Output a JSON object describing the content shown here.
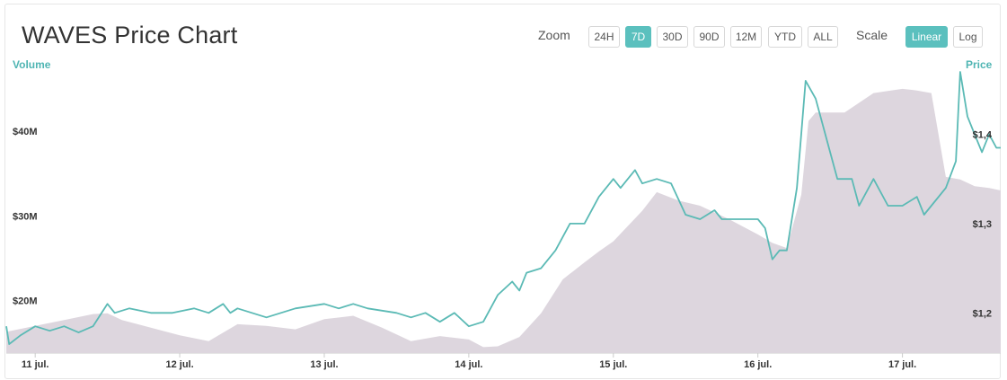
{
  "title": "WAVES Price Chart",
  "zoom": {
    "label": "Zoom",
    "buttons": [
      "24H",
      "7D",
      "30D",
      "90D",
      "12M",
      "YTD",
      "ALL"
    ],
    "active": "7D"
  },
  "scale": {
    "label": "Scale",
    "buttons": [
      "Linear",
      "Log"
    ],
    "active": "Linear"
  },
  "colors": {
    "accent": "#5bc0be",
    "price_line": "#5bbab5",
    "volume_fill": "#ddd6de"
  },
  "chart_data": {
    "type": "line",
    "left_axis_label": "Volume",
    "right_axis_label": "Price",
    "x_tick_labels": [
      "11 jul.",
      "12 jul.",
      "13 jul.",
      "14 jul.",
      "15 jul.",
      "16 jul.",
      "17 jul."
    ],
    "x_range": [
      10.8,
      17.68
    ],
    "volume_ticks": [
      "$20M",
      "$30M",
      "$40M"
    ],
    "volume_tick_values": [
      20,
      30,
      40
    ],
    "volume_range": [
      13.8,
      47
    ],
    "price_ticks": [
      "$1,2",
      "$1,3",
      "$1,4"
    ],
    "price_tick_values": [
      1.2,
      1.3,
      1.4
    ],
    "price_range": [
      1.155,
      1.47
    ],
    "volume": {
      "name": "Volume",
      "unit": "$M",
      "x": [
        10.8,
        11.0,
        11.2,
        11.4,
        11.5,
        11.6,
        11.8,
        12.0,
        12.2,
        12.4,
        12.6,
        12.8,
        13.0,
        13.2,
        13.4,
        13.6,
        13.8,
        14.0,
        14.1,
        14.2,
        14.35,
        14.5,
        14.65,
        14.8,
        14.9,
        15.0,
        15.1,
        15.2,
        15.3,
        15.45,
        15.6,
        15.8,
        16.0,
        16.1,
        16.2,
        16.3,
        16.35,
        16.4,
        16.6,
        16.8,
        17.0,
        17.1,
        17.2,
        17.3,
        17.4,
        17.5,
        17.6,
        17.68
      ],
      "y": [
        16.3,
        17.0,
        17.7,
        18.4,
        18.5,
        17.7,
        16.8,
        15.9,
        15.2,
        17.2,
        17.0,
        16.6,
        17.8,
        18.2,
        16.8,
        15.2,
        15.8,
        15.4,
        14.5,
        14.6,
        15.7,
        18.5,
        22.5,
        24.5,
        25.8,
        27.0,
        28.8,
        30.6,
        32.8,
        31.8,
        31.2,
        29.6,
        27.8,
        26.8,
        26.2,
        32.5,
        41.2,
        42.2,
        42.2,
        44.5,
        45.0,
        44.8,
        44.5,
        34.6,
        34.3,
        33.5,
        33.3,
        33.0
      ]
    },
    "price": {
      "name": "Price",
      "unit": "$",
      "x": [
        10.8,
        10.82,
        10.9,
        11.0,
        11.1,
        11.2,
        11.3,
        11.4,
        11.5,
        11.55,
        11.65,
        11.8,
        11.95,
        12.1,
        12.2,
        12.3,
        12.35,
        12.4,
        12.5,
        12.6,
        12.8,
        13.0,
        13.1,
        13.2,
        13.3,
        13.5,
        13.6,
        13.7,
        13.8,
        13.9,
        14.0,
        14.1,
        14.2,
        14.3,
        14.35,
        14.4,
        14.5,
        14.6,
        14.7,
        14.8,
        14.9,
        15.0,
        15.05,
        15.15,
        15.2,
        15.3,
        15.4,
        15.5,
        15.6,
        15.7,
        15.75,
        15.8,
        15.9,
        16.0,
        16.05,
        16.1,
        16.15,
        16.2,
        16.27,
        16.33,
        16.4,
        16.5,
        16.55,
        16.65,
        16.7,
        16.8,
        16.9,
        17.0,
        17.1,
        17.15,
        17.2,
        17.3,
        17.37,
        17.4,
        17.45,
        17.5,
        17.55,
        17.6,
        17.65,
        17.68
      ],
      "y": [
        1.185,
        1.165,
        1.175,
        1.185,
        1.18,
        1.185,
        1.178,
        1.185,
        1.21,
        1.2,
        1.205,
        1.2,
        1.2,
        1.205,
        1.2,
        1.21,
        1.2,
        1.205,
        1.2,
        1.195,
        1.205,
        1.21,
        1.205,
        1.21,
        1.205,
        1.2,
        1.195,
        1.2,
        1.19,
        1.2,
        1.185,
        1.19,
        1.22,
        1.235,
        1.225,
        1.245,
        1.25,
        1.27,
        1.3,
        1.3,
        1.33,
        1.35,
        1.34,
        1.36,
        1.345,
        1.35,
        1.345,
        1.31,
        1.305,
        1.315,
        1.305,
        1.305,
        1.305,
        1.305,
        1.295,
        1.26,
        1.27,
        1.27,
        1.34,
        1.46,
        1.44,
        1.38,
        1.35,
        1.35,
        1.32,
        1.35,
        1.32,
        1.32,
        1.33,
        1.31,
        1.32,
        1.34,
        1.37,
        1.47,
        1.42,
        1.4,
        1.38,
        1.4,
        1.385,
        1.385
      ]
    }
  }
}
